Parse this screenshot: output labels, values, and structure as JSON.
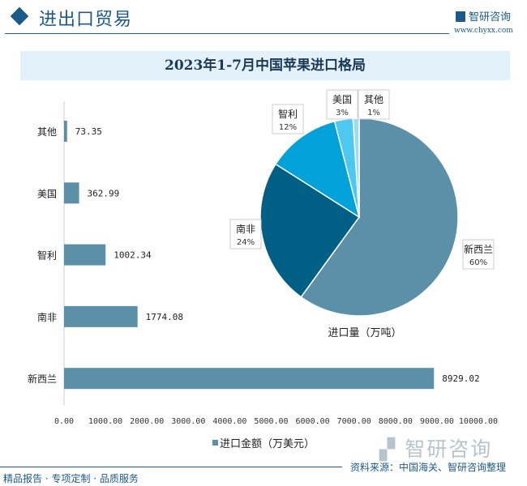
{
  "header": {
    "title": "进出口贸易",
    "logo": "智研咨询",
    "url": "www.chyxx.com"
  },
  "chart_title": "2023年1-7月中国苹果进口格局",
  "chart_data": [
    {
      "type": "bar",
      "orientation": "horizontal",
      "categories": [
        "其他",
        "美国",
        "智利",
        "南非",
        "新西兰"
      ],
      "values": [
        73.35,
        362.99,
        1002.34,
        1774.08,
        8929.02
      ],
      "value_labels": [
        "73.35",
        "362.99",
        "1002.34",
        "1774.08",
        "8929.02"
      ],
      "xlim": [
        0,
        10000
      ],
      "xticks": [
        "0.00",
        "1000.00",
        "2000.00",
        "3000.00",
        "4000.00",
        "5000.00",
        "6000.00",
        "7000.00",
        "8000.00",
        "9000.00",
        "10000.00"
      ],
      "legend": "进口金额（万美元）",
      "legend_position": "bottom",
      "color": "#5b90a8",
      "grid": false
    },
    {
      "type": "pie",
      "title": "进口量（万吨）",
      "slices": [
        {
          "label": "新西兰",
          "value": 60,
          "pct": "60%",
          "color": "#5b90a8"
        },
        {
          "label": "南非",
          "value": 24,
          "pct": "24%",
          "color": "#005f85"
        },
        {
          "label": "智利",
          "value": 12,
          "pct": "12%",
          "color": "#00a2d9"
        },
        {
          "label": "美国",
          "value": 3,
          "pct": "3%",
          "color": "#4dc8f0"
        },
        {
          "label": "其他",
          "value": 1,
          "pct": "1%",
          "color": "#9fdcf2"
        }
      ]
    }
  ],
  "watermark": "智研咨询",
  "footer": {
    "left": "精品报告 · 专项定制 · 品质服务",
    "source": "资料来源：中国海关、智研咨询整理"
  }
}
